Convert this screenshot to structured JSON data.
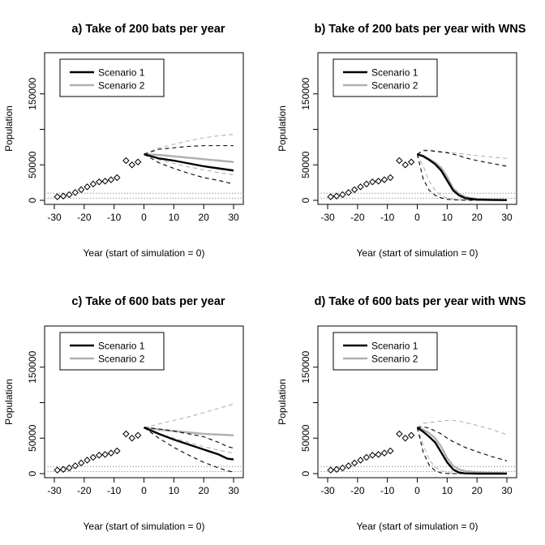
{
  "chart_data": [
    {
      "type": "line",
      "title": "a) Take of 200 bats per year",
      "xlabel": "Year (start of simulation = 0)",
      "ylabel": "Population",
      "xlim": [
        -30,
        30
      ],
      "ylim": [
        0,
        200000
      ],
      "x_ticks": [
        "-30",
        "-20",
        "-10",
        "0",
        "10",
        "20",
        "30"
      ],
      "y_ticks": [
        "0",
        "50000",
        "150000"
      ],
      "legend_position": "top-left",
      "observed": {
        "x": [
          -29,
          -27,
          -25,
          -23,
          -21,
          -19,
          -17,
          -15,
          -13,
          -11,
          -9,
          -6,
          -4,
          -2
        ],
        "y": [
          5000,
          6000,
          8000,
          11000,
          15000,
          19000,
          23000,
          26000,
          27000,
          29000,
          32000,
          56000,
          50000,
          54000
        ]
      },
      "reference_lines": [
        3000,
        10000
      ],
      "series": [
        {
          "name": "Scenario 1",
          "color": "#000000",
          "x": [
            0,
            5,
            10,
            15,
            20,
            25,
            30
          ],
          "mean": [
            65000,
            59000,
            56000,
            52000,
            48000,
            45000,
            42000
          ],
          "upper": [
            65000,
            72000,
            74000,
            76000,
            77000,
            77000,
            77000
          ],
          "lower": [
            65000,
            53000,
            45000,
            38000,
            32000,
            28000,
            23000
          ]
        },
        {
          "name": "Scenario 2",
          "color": "#b0b0b0",
          "x": [
            0,
            5,
            10,
            15,
            20,
            25,
            30
          ],
          "mean": [
            65000,
            64000,
            62000,
            60000,
            58000,
            56000,
            54000
          ],
          "upper": [
            65000,
            74000,
            79000,
            84000,
            88000,
            91000,
            93000
          ],
          "lower": [
            65000,
            57000,
            52000,
            47000,
            43000,
            39000,
            36000
          ]
        }
      ]
    },
    {
      "type": "line",
      "title": "b) Take of 200 bats per year with WNS",
      "xlabel": "Year (start of simulation = 0)",
      "ylabel": "Population",
      "xlim": [
        -30,
        30
      ],
      "ylim": [
        0,
        200000
      ],
      "x_ticks": [
        "-30",
        "-20",
        "-10",
        "0",
        "10",
        "20",
        "30"
      ],
      "y_ticks": [
        "0",
        "50000",
        "150000"
      ],
      "legend_position": "top-left",
      "observed": {
        "x": [
          -29,
          -27,
          -25,
          -23,
          -21,
          -19,
          -17,
          -15,
          -13,
          -11,
          -9,
          -6,
          -4,
          -2
        ],
        "y": [
          5000,
          6000,
          8000,
          11000,
          15000,
          19000,
          23000,
          26000,
          27000,
          29000,
          32000,
          56000,
          50000,
          54000
        ]
      },
      "reference_lines": [
        3000,
        10000
      ],
      "series": [
        {
          "name": "Scenario 1",
          "color": "#000000",
          "x": [
            0,
            2,
            4,
            6,
            8,
            10,
            12,
            14,
            16,
            18,
            20,
            25,
            30
          ],
          "mean": [
            65000,
            62000,
            57000,
            51000,
            42000,
            28000,
            14000,
            7000,
            3000,
            2000,
            1000,
            500,
            300
          ],
          "upper": [
            65000,
            70000,
            70000,
            69000,
            68000,
            67000,
            65000,
            63000,
            60000,
            58000,
            56000,
            52000,
            48000
          ],
          "lower": [
            65000,
            30000,
            14000,
            7000,
            3500,
            1500,
            800,
            400,
            200,
            100,
            50,
            0,
            0
          ]
        },
        {
          "name": "Scenario 2",
          "color": "#b0b0b0",
          "x": [
            0,
            2,
            4,
            6,
            8,
            10,
            12,
            14,
            16,
            18,
            20,
            25,
            30
          ],
          "mean": [
            65000,
            63000,
            58000,
            53000,
            46000,
            33000,
            17000,
            9000,
            5000,
            3000,
            2000,
            1000,
            500
          ],
          "upper": [
            65000,
            71000,
            71000,
            70000,
            69000,
            68000,
            67000,
            66000,
            65000,
            64000,
            63000,
            61000,
            59000
          ],
          "lower": [
            65000,
            48000,
            27000,
            14000,
            7000,
            3000,
            1500,
            800,
            400,
            200,
            100,
            0,
            0
          ]
        }
      ]
    },
    {
      "type": "line",
      "title": "c) Take of 600 bats per year",
      "xlabel": "Year (start of simulation = 0)",
      "ylabel": "Population",
      "xlim": [
        -30,
        30
      ],
      "ylim": [
        0,
        200000
      ],
      "x_ticks": [
        "-30",
        "-20",
        "-10",
        "0",
        "10",
        "20",
        "30"
      ],
      "y_ticks": [
        "0",
        "50000",
        "150000"
      ],
      "legend_position": "top-left",
      "observed": {
        "x": [
          -29,
          -27,
          -25,
          -23,
          -21,
          -19,
          -17,
          -15,
          -13,
          -11,
          -9,
          -6,
          -4,
          -2
        ],
        "y": [
          5000,
          6000,
          8000,
          11000,
          15000,
          19000,
          23000,
          26000,
          27000,
          29000,
          32000,
          56000,
          50000,
          54000
        ]
      },
      "reference_lines": [
        3000,
        10000
      ],
      "series": [
        {
          "name": "Scenario 1",
          "color": "#000000",
          "x": [
            0,
            5,
            10,
            15,
            20,
            25,
            28,
            30
          ],
          "mean": [
            65000,
            56000,
            48000,
            41000,
            34000,
            27000,
            21000,
            20000
          ],
          "upper": [
            65000,
            63000,
            60000,
            56000,
            52000,
            44000,
            38000,
            36000
          ],
          "lower": [
            65000,
            50000,
            37000,
            26000,
            16000,
            8000,
            4000,
            2000
          ]
        },
        {
          "name": "Scenario 2",
          "color": "#b0b0b0",
          "x": [
            0,
            5,
            10,
            15,
            20,
            25,
            30
          ],
          "mean": [
            65000,
            62000,
            60000,
            58000,
            56000,
            55000,
            54000
          ],
          "upper": [
            65000,
            70000,
            75000,
            80000,
            86000,
            92000,
            98000
          ],
          "lower": [
            65000,
            56000,
            50000,
            44000,
            38000,
            33000,
            29000
          ]
        }
      ]
    },
    {
      "type": "line",
      "title": "d) Take of 600 bats per year with WNS",
      "xlabel": "Year (start of simulation = 0)",
      "ylabel": "Population",
      "xlim": [
        -30,
        30
      ],
      "ylim": [
        0,
        200000
      ],
      "x_ticks": [
        "-30",
        "-20",
        "-10",
        "0",
        "10",
        "20",
        "30"
      ],
      "y_ticks": [
        "0",
        "50000",
        "150000"
      ],
      "legend_position": "top-left",
      "observed": {
        "x": [
          -29,
          -27,
          -25,
          -23,
          -21,
          -19,
          -17,
          -15,
          -13,
          -11,
          -9,
          -6,
          -4,
          -2
        ],
        "y": [
          5000,
          6000,
          8000,
          11000,
          15000,
          19000,
          23000,
          26000,
          27000,
          29000,
          32000,
          56000,
          50000,
          54000
        ]
      },
      "reference_lines": [
        3000,
        10000
      ],
      "series": [
        {
          "name": "Scenario 1",
          "color": "#000000",
          "x": [
            0,
            2,
            4,
            6,
            8,
            10,
            12,
            14,
            16,
            20,
            25,
            30
          ],
          "mean": [
            65000,
            59000,
            52000,
            44000,
            30000,
            16000,
            6000,
            1500,
            400,
            0,
            0,
            0
          ],
          "upper": [
            65000,
            66000,
            64000,
            60000,
            56000,
            50000,
            45000,
            41000,
            37000,
            31000,
            24000,
            18000
          ],
          "lower": [
            65000,
            30000,
            12000,
            4000,
            1000,
            200,
            0,
            0,
            0,
            0,
            0,
            0
          ]
        },
        {
          "name": "Scenario 2",
          "color": "#b0b0b0",
          "x": [
            0,
            2,
            4,
            6,
            8,
            10,
            12,
            14,
            16,
            20,
            25,
            30
          ],
          "mean": [
            65000,
            62000,
            57000,
            50000,
            38000,
            22000,
            11000,
            6000,
            3500,
            2000,
            1000,
            500
          ],
          "upper": [
            65000,
            71000,
            72000,
            73000,
            74000,
            75000,
            75000,
            74000,
            72000,
            68000,
            62000,
            55000
          ],
          "lower": [
            65000,
            40000,
            20000,
            9000,
            4000,
            1500,
            500,
            200,
            0,
            0,
            0,
            0
          ]
        }
      ]
    }
  ]
}
